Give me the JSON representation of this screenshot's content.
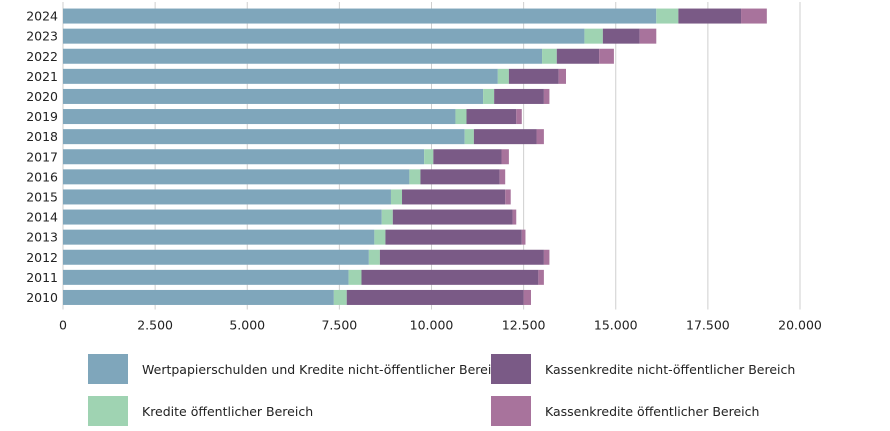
{
  "chart_data": {
    "type": "bar",
    "orientation": "horizontal",
    "stacked": true,
    "categories": [
      "2024",
      "2023",
      "2022",
      "2021",
      "2020",
      "2019",
      "2018",
      "2017",
      "2016",
      "2015",
      "2014",
      "2013",
      "2012",
      "2011",
      "2010"
    ],
    "series": [
      {
        "name": "Wertpapierschulden und Kredite nicht-öffentlicher Bereich",
        "color": "#7fa6bb",
        "values": [
          16100,
          14150,
          13000,
          11800,
          11400,
          10650,
          10900,
          9800,
          9400,
          8900,
          8650,
          8450,
          8300,
          7750,
          7350
        ]
      },
      {
        "name": "Kredite öffentlicher Bereich",
        "color": "#9fd3b2",
        "values": [
          600,
          500,
          400,
          300,
          300,
          300,
          250,
          250,
          300,
          300,
          300,
          300,
          300,
          350,
          350
        ]
      },
      {
        "name": "Kassenkredite nicht-öffentlicher Bereich",
        "color": "#7a5a86",
        "values": [
          1700,
          1000,
          1150,
          1350,
          1350,
          1350,
          1700,
          1850,
          2150,
          2800,
          3250,
          3700,
          4450,
          4800,
          4800
        ]
      },
      {
        "name": "Kassenkredite öffentlicher Bereich",
        "color": "#a8739c",
        "values": [
          700,
          450,
          400,
          200,
          150,
          150,
          200,
          200,
          150,
          150,
          100,
          100,
          150,
          150,
          200
        ]
      }
    ],
    "xticks": [
      "0",
      "2.500",
      "5.000",
      "7.500",
      "10.000",
      "12.500",
      "15.000",
      "17.500",
      "20.000"
    ],
    "xlim": [
      0,
      20000
    ],
    "grid": "vertical",
    "legend_position": "bottom"
  }
}
